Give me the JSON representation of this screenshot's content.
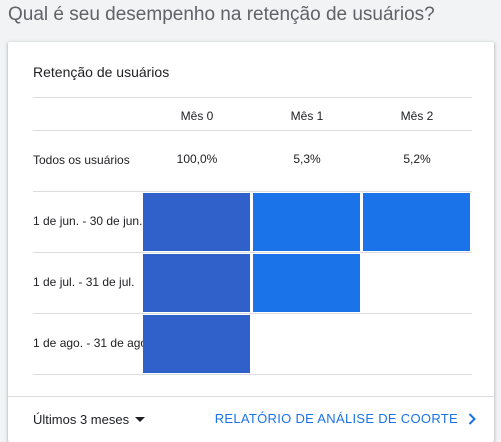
{
  "page_title": "Qual é seu desempenho na retenção de usuários?",
  "card": {
    "title": "Retenção de usuários",
    "columns": [
      "Mês 0",
      "Mês 1",
      "Mês 2"
    ],
    "summary_row": {
      "label": "Todos os usuários",
      "values": [
        "100,0%",
        "5,3%",
        "5,2%"
      ]
    },
    "cohorts": [
      {
        "label": "1 de jun. - 30 de jun.",
        "cells": 3
      },
      {
        "label": "1 de jul. - 31 de jul.",
        "cells": 2
      },
      {
        "label": "1 de ago. - 31 de ago.",
        "cells": 1
      }
    ],
    "colors": {
      "month0": "#3060c9",
      "other": "#1a73e8"
    }
  },
  "footer": {
    "period_label": "Últimos 3 meses",
    "report_link": "RELATÓRIO DE ANÁLISE DE COORTE"
  }
}
